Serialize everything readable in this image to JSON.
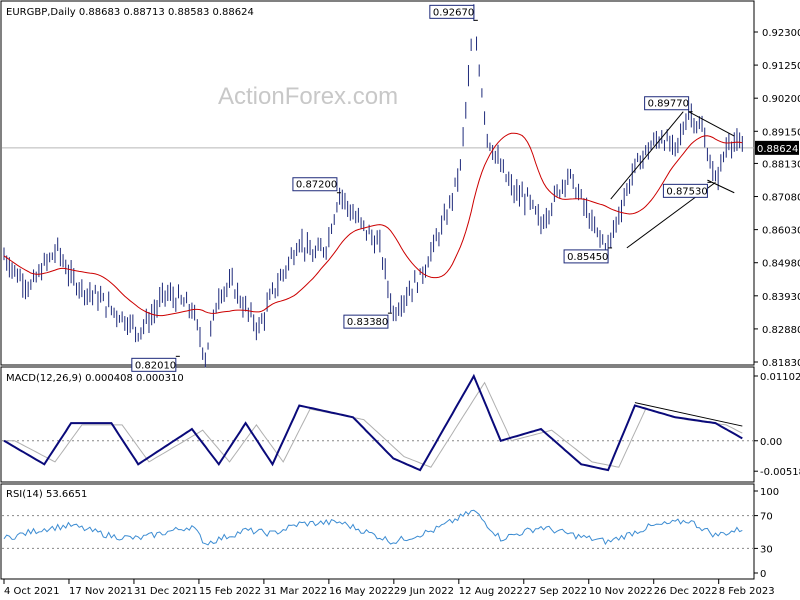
{
  "symbol_header": "EURGBP,Daily  0.88683 0.88713 0.88583 0.88624",
  "watermark": "ActionForex.com",
  "price_axis_ticks": [
    "0.92300",
    "0.91250",
    "0.90200",
    "0.89150",
    "0.88130",
    "0.87080",
    "0.86030",
    "0.84980",
    "0.83930",
    "0.82880",
    "0.81830"
  ],
  "current_price": "0.88624",
  "macd_header": "MACD(12,26,9) 0.000408 0.000310",
  "macd_axis_ticks": [
    "0.011023",
    "0.00",
    "-0.005182"
  ],
  "rsi_header": "RSI(14) 53.6651",
  "rsi_axis_ticks": [
    "100",
    "70",
    "30",
    "0"
  ],
  "date_axis": [
    "4 Oct 2021",
    "17 Nov 2021",
    "31 Dec 2021",
    "15 Feb 2022",
    "31 Mar 2022",
    "16 May 2022",
    "29 Jun 2022",
    "12 Aug 2022",
    "27 Sep 2022",
    "10 Nov 2022",
    "26 Dec 2022",
    "8 Feb 2023"
  ],
  "annotations": [
    {
      "text": "0.82010",
      "value": 0.8201
    },
    {
      "text": "0.87200",
      "value": 0.872
    },
    {
      "text": "0.83380",
      "value": 0.8338
    },
    {
      "text": "0.92670",
      "value": 0.9267
    },
    {
      "text": "0.85450",
      "value": 0.8545
    },
    {
      "text": "0.89770",
      "value": 0.8977
    },
    {
      "text": "0.87530",
      "value": 0.8753
    }
  ],
  "colors": {
    "price_bars": "#1e2a7a",
    "moving_average": "#cc0000",
    "macd_line": "#0a0a7a",
    "signal_line": "#b0b0b0",
    "rsi_line": "#3c8cd2",
    "trend_lines": "#000000",
    "label_border": "#1e2a7a"
  },
  "chart_data": [
    {
      "type": "line",
      "title": "EURGBP,Daily",
      "y_axis": "price",
      "ylim": [
        0.8183,
        0.923
      ],
      "series": [
        {
          "name": "",
          "values": [
            [
              0,
              0.852
            ],
            [
              5,
              0.846
            ],
            [
              10,
              0.842
            ],
            [
              15,
              0.849
            ],
            [
              20,
              0.854
            ],
            [
              25,
              0.845
            ],
            [
              30,
              0.841
            ],
            [
              35,
              0.839
            ],
            [
              40,
              0.835
            ],
            [
              45,
              0.832
            ],
            [
              50,
              0.828
            ],
            [
              55,
              0.833
            ],
            [
              60,
              0.84
            ],
            [
              65,
              0.838
            ],
            [
              70,
              0.835
            ],
            [
              75,
              0.8201
            ],
            [
              80,
              0.84
            ],
            [
              85,
              0.843
            ],
            [
              90,
              0.835
            ],
            [
              95,
              0.829
            ],
            [
              100,
              0.84
            ],
            [
              105,
              0.848
            ],
            [
              110,
              0.857
            ],
            [
              115,
              0.852
            ],
            [
              120,
              0.855
            ],
            [
              125,
              0.872
            ],
            [
              130,
              0.865
            ],
            [
              135,
              0.86
            ],
            [
              140,
              0.855
            ],
            [
              145,
              0.8338
            ],
            [
              150,
              0.84
            ],
            [
              155,
              0.845
            ],
            [
              160,
              0.855
            ],
            [
              165,
              0.865
            ],
            [
              170,
              0.88
            ],
            [
              175,
              0.9267
            ],
            [
              180,
              0.89
            ],
            [
              185,
              0.88
            ],
            [
              190,
              0.872
            ],
            [
              195,
              0.87
            ],
            [
              200,
              0.862
            ],
            [
              205,
              0.87
            ],
            [
              210,
              0.878
            ],
            [
              215,
              0.87
            ],
            [
              220,
              0.86
            ],
            [
              225,
              0.8545
            ],
            [
              230,
              0.868
            ],
            [
              235,
              0.88
            ],
            [
              240,
              0.886
            ],
            [
              245,
              0.89
            ],
            [
              250,
              0.885
            ],
            [
              255,
              0.8977
            ],
            [
              260,
              0.892
            ],
            [
              265,
              0.8753
            ],
            [
              270,
              0.889
            ],
            [
              275,
              0.886
            ]
          ]
        }
      ]
    },
    {
      "type": "line",
      "title": "MACD(12,26,9)",
      "ylim": [
        -0.006,
        0.011023
      ],
      "series": [
        {
          "name": "",
          "values": [
            [
              0,
              0.0
            ],
            [
              15,
              -0.004
            ],
            [
              25,
              0.003
            ],
            [
              40,
              0.003
            ],
            [
              50,
              -0.004
            ],
            [
              70,
              0.002
            ],
            [
              80,
              -0.004
            ],
            [
              90,
              0.003
            ],
            [
              100,
              -0.004
            ],
            [
              110,
              0.006
            ],
            [
              130,
              0.004
            ],
            [
              145,
              -0.003
            ],
            [
              155,
              -0.005
            ],
            [
              175,
              0.011
            ],
            [
              185,
              0.0
            ],
            [
              200,
              0.002
            ],
            [
              215,
              -0.004
            ],
            [
              225,
              -0.005
            ],
            [
              235,
              0.006
            ],
            [
              250,
              0.004
            ],
            [
              265,
              0.003
            ],
            [
              275,
              0.0004
            ]
          ]
        }
      ]
    },
    {
      "type": "line",
      "title": "RSI(14)",
      "ylim": [
        0,
        100
      ],
      "series": [
        {
          "name": "",
          "values": [
            [
              0,
              42
            ],
            [
              15,
              54
            ],
            [
              25,
              58
            ],
            [
              40,
              45
            ],
            [
              50,
              42
            ],
            [
              70,
              57
            ],
            [
              75,
              36
            ],
            [
              90,
              52
            ],
            [
              100,
              48
            ],
            [
              110,
              60
            ],
            [
              125,
              62
            ],
            [
              145,
              38
            ],
            [
              160,
              52
            ],
            [
              175,
              76
            ],
            [
              185,
              42
            ],
            [
              200,
              56
            ],
            [
              215,
              44
            ],
            [
              225,
              38
            ],
            [
              240,
              56
            ],
            [
              255,
              64
            ],
            [
              265,
              46
            ],
            [
              275,
              53.7
            ]
          ]
        }
      ]
    }
  ]
}
